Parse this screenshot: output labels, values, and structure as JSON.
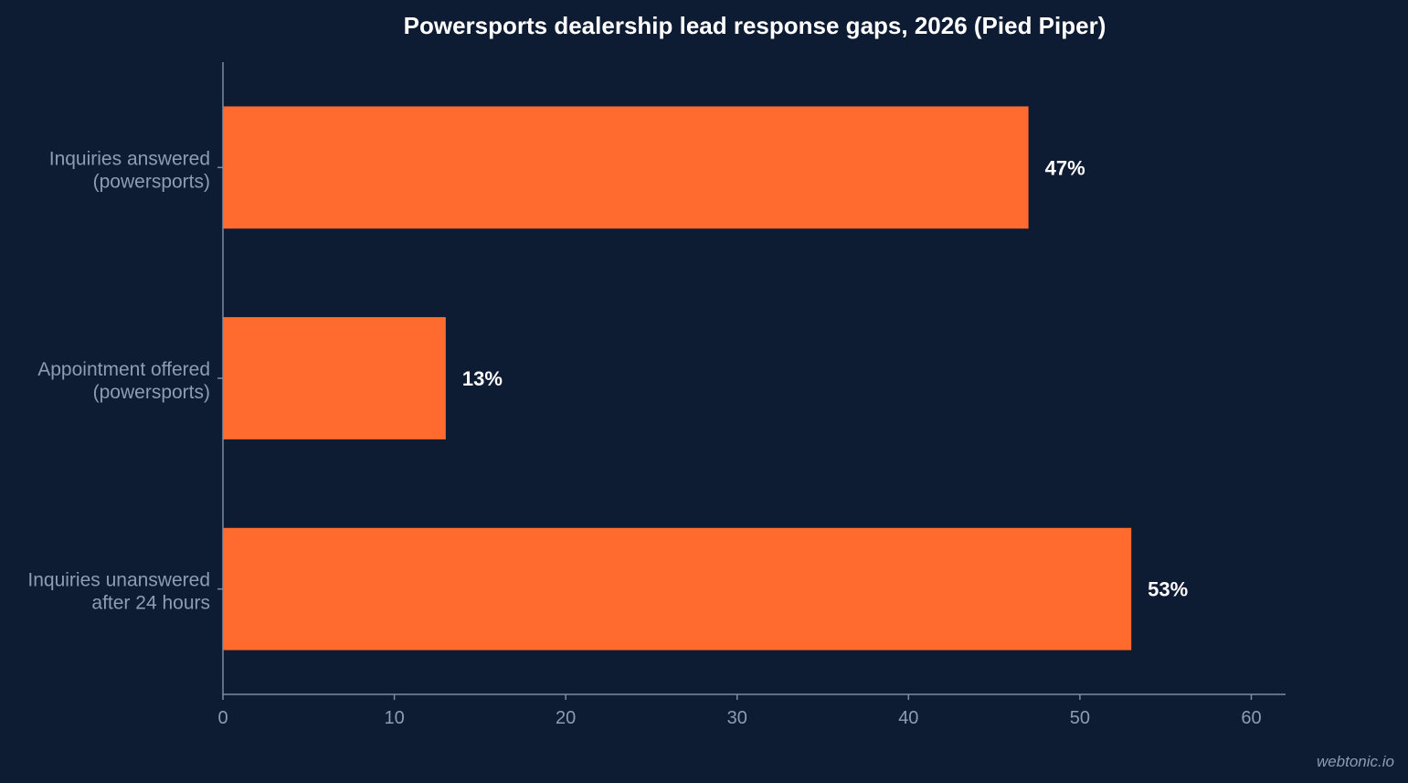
{
  "chart_data": {
    "type": "bar",
    "orientation": "horizontal",
    "title": "Powersports dealership lead response gaps, 2026 (Pied Piper)",
    "categories": [
      [
        "Inquiries answered",
        "(powersports)"
      ],
      [
        "Appointment offered",
        "(powersports)"
      ],
      [
        "Inquiries unanswered",
        "after 24 hours"
      ]
    ],
    "values": [
      47,
      13,
      53
    ],
    "value_labels": [
      "47%",
      "13%",
      "53%"
    ],
    "xlim": [
      0,
      62
    ],
    "xticks": [
      0,
      10,
      20,
      30,
      40,
      50,
      60
    ],
    "grid": false,
    "bar_color": "#ff6a2e",
    "background_color": "#0d1b33"
  },
  "watermark": "webtonic.io"
}
